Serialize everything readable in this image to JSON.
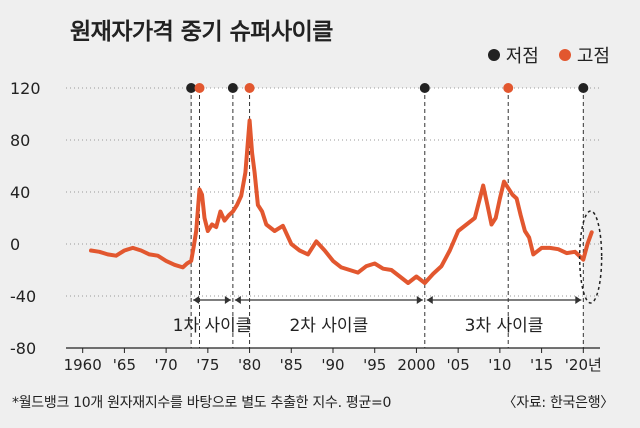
{
  "title": "원재자가격 중기 슈퍼사이클",
  "legend": {
    "low_label": "저점",
    "high_label": "고점",
    "low_color": "#222222",
    "high_color": "#e2572f"
  },
  "note": "*월드뱅크 10개 원자재지수를 바탕으로 별도 추출한 지수. 평균=0",
  "source": "〈자료: 한국은행〉",
  "colors": {
    "line": "#e2572f",
    "axis": "#222222",
    "band": "#ffffff"
  },
  "chart_data": {
    "type": "line",
    "title": "원재자가격 중기 슈퍼사이클",
    "xlim": [
      1958,
      2022
    ],
    "ylim": [
      -80,
      120
    ],
    "y_ticks": [
      120,
      80,
      40,
      0,
      -40,
      -80
    ],
    "x_tick_labels": [
      {
        "x": 1960,
        "label": "1960"
      },
      {
        "x": 1965,
        "label": "'65"
      },
      {
        "x": 1970,
        "label": "'70"
      },
      {
        "x": 1975,
        "label": "'75"
      },
      {
        "x": 1980,
        "label": "'80"
      },
      {
        "x": 1985,
        "label": "'85"
      },
      {
        "x": 1990,
        "label": "'90"
      },
      {
        "x": 1995,
        "label": "'95"
      },
      {
        "x": 2000,
        "label": "2000"
      },
      {
        "x": 2005,
        "label": "'05"
      },
      {
        "x": 2010,
        "label": "'10"
      },
      {
        "x": 2015,
        "label": "'15"
      },
      {
        "x": 2020,
        "label": "'20년"
      }
    ],
    "series": [
      {
        "x": [
          1961,
          1962,
          1963,
          1964,
          1965,
          1966,
          1967,
          1968,
          1969,
          1970,
          1971,
          1972,
          1972.5,
          1973,
          1973.3,
          1973.6,
          1974,
          1974.3,
          1974.6,
          1975,
          1975.5,
          1976,
          1976.5,
          1977,
          1977.5,
          1978,
          1978.5,
          1979,
          1979.5,
          1980,
          1980.3,
          1980.6,
          1981,
          1981.5,
          1982,
          1983,
          1984,
          1985,
          1986,
          1987,
          1988,
          1989,
          1990,
          1991,
          1992,
          1993,
          1994,
          1995,
          1996,
          1997,
          1998,
          1999,
          2000,
          2001,
          2002,
          2003,
          2004,
          2005,
          2006,
          2007,
          2008,
          2008.5,
          2009,
          2009.5,
          2010,
          2010.5,
          2011,
          2011.5,
          2012,
          2012.5,
          2013,
          2013.5,
          2014,
          2015,
          2016,
          2017,
          2018,
          2019,
          2019.5,
          2020,
          2020.5,
          2021
        ],
        "y": [
          -5,
          -6,
          -8,
          -9,
          -5,
          -3,
          -5,
          -8,
          -9,
          -13,
          -16,
          -18,
          -15,
          -13,
          -2,
          10,
          42,
          38,
          20,
          10,
          15,
          13,
          25,
          18,
          22,
          25,
          30,
          37,
          55,
          95,
          70,
          55,
          30,
          25,
          15,
          10,
          14,
          0,
          -5,
          -8,
          2,
          -5,
          -13,
          -18,
          -20,
          -22,
          -17,
          -15,
          -19,
          -20,
          -25,
          -30,
          -25,
          -30,
          -23,
          -17,
          -5,
          10,
          15,
          20,
          45,
          30,
          15,
          20,
          35,
          48,
          43,
          38,
          35,
          22,
          10,
          5,
          -8,
          -3,
          -3,
          -4,
          -7,
          -6,
          -9,
          -12,
          0,
          9
        ]
      }
    ],
    "low_points": [
      1973,
      1978,
      2001,
      2020
    ],
    "high_points": [
      1974,
      1980,
      2011
    ],
    "cycles": [
      {
        "label": "1차 사이클",
        "start": 1973,
        "end": 1978
      },
      {
        "label": "2차 사이클",
        "start": 1978,
        "end": 2001
      },
      {
        "label": "3차 사이클",
        "start": 2001,
        "end": 2020
      }
    ],
    "highlight": {
      "x": 2021,
      "y": -10
    }
  }
}
